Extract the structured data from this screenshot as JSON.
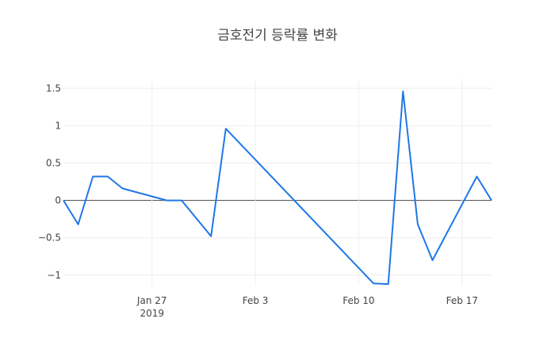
{
  "chart_data": {
    "type": "line",
    "title": "금호전기 등락률 변화",
    "xlabel": "",
    "ylabel": "",
    "x_ticks": [
      {
        "date": "2019-01-27",
        "label": "Jan 27",
        "sublabel": "2019"
      },
      {
        "date": "2019-02-03",
        "label": "Feb 3",
        "sublabel": ""
      },
      {
        "date": "2019-02-10",
        "label": "Feb 10",
        "sublabel": ""
      },
      {
        "date": "2019-02-17",
        "label": "Feb 17",
        "sublabel": ""
      }
    ],
    "y_ticks": [
      {
        "value": 1.5,
        "label": "1.5"
      },
      {
        "value": 1,
        "label": "1"
      },
      {
        "value": 0.5,
        "label": "0.5"
      },
      {
        "value": 0,
        "label": "0"
      },
      {
        "value": -0.5,
        "label": "−0.5"
      },
      {
        "value": -1,
        "label": "−1"
      }
    ],
    "xlim": [
      "2019-01-21",
      "2019-02-19"
    ],
    "ylim": [
      -1.14,
      1.62
    ],
    "grid": true,
    "series": [
      {
        "color": "#1f77e8",
        "x": [
          "2019-01-21",
          "2019-01-22",
          "2019-01-23",
          "2019-01-24",
          "2019-01-25",
          "2019-01-28",
          "2019-01-29",
          "2019-01-31",
          "2019-02-01",
          "2019-02-11",
          "2019-02-12",
          "2019-02-13",
          "2019-02-14",
          "2019-02-15",
          "2019-02-18",
          "2019-02-19"
        ],
        "y": [
          0.0,
          -0.32,
          0.32,
          0.32,
          0.16,
          0.0,
          0.0,
          -0.48,
          0.96,
          -1.11,
          -1.12,
          1.46,
          -0.32,
          -0.8,
          0.32,
          0.0
        ]
      }
    ]
  }
}
